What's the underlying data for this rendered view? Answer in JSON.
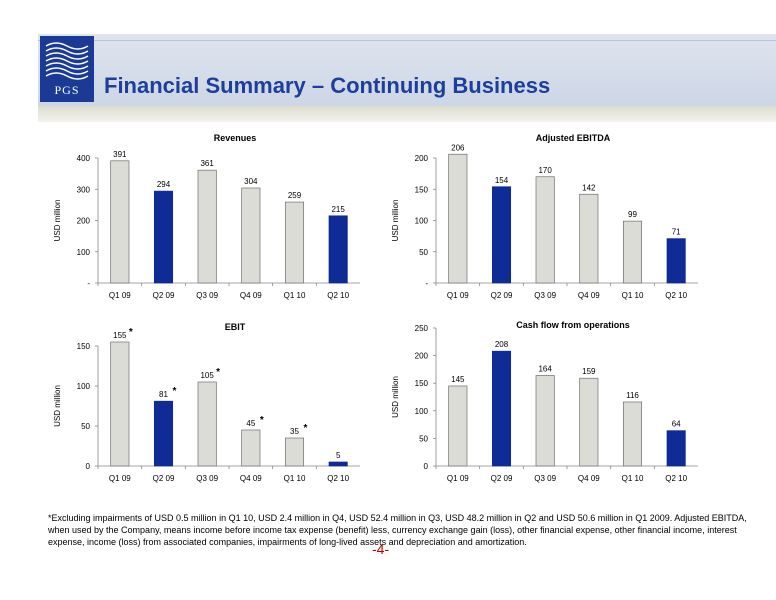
{
  "header": {
    "logo_text": "PGS",
    "title": "Financial Summary – Continuing Business"
  },
  "colors": {
    "grey_bar": "#dcdcd6",
    "blue_bar": "#0f2b96",
    "title_blue": "#1b3f9a"
  },
  "chart_data": [
    {
      "type": "bar",
      "title": "Revenues",
      "ylabel": "USD million",
      "categories": [
        "Q1 09",
        "Q2 09",
        "Q3 09",
        "Q4 09",
        "Q1 10",
        "Q2 10"
      ],
      "values": [
        391,
        294,
        361,
        304,
        259,
        215
      ],
      "highlight": [
        false,
        true,
        false,
        false,
        false,
        true
      ],
      "data_labels": [
        "391",
        "294",
        "361",
        "304",
        "259",
        "215"
      ],
      "ylim": [
        0,
        400
      ],
      "yticks": [
        0,
        100,
        200,
        300,
        400
      ],
      "ytick_labels": [
        "-",
        "100",
        "200",
        "300",
        "400"
      ]
    },
    {
      "type": "bar",
      "title": "Adjusted EBITDA",
      "ylabel": "USD million",
      "categories": [
        "Q1 09",
        "Q2 09",
        "Q3 09",
        "Q4 09",
        "Q1 10",
        "Q2 10"
      ],
      "values": [
        206,
        154,
        170,
        142,
        99,
        71
      ],
      "highlight": [
        false,
        true,
        false,
        false,
        false,
        true
      ],
      "data_labels": [
        "206",
        "154",
        "170",
        "142",
        "99",
        "71"
      ],
      "ylim": [
        0,
        200
      ],
      "yticks": [
        0,
        50,
        100,
        150,
        200
      ],
      "ytick_labels": [
        "-",
        "50",
        "100",
        "150",
        "200"
      ]
    },
    {
      "type": "bar",
      "title": "EBIT",
      "ylabel": "USD million",
      "categories": [
        "Q1 09",
        "Q2 09",
        "Q3 09",
        "Q4 09",
        "Q1 10",
        "Q2 10"
      ],
      "values": [
        155,
        81,
        105,
        45,
        35,
        5
      ],
      "highlight": [
        false,
        true,
        false,
        false,
        false,
        true
      ],
      "data_labels": [
        "155",
        "81",
        "105",
        "45",
        "35",
        "5"
      ],
      "asterisks": [
        "*",
        "*",
        "*",
        "*",
        "*",
        ""
      ],
      "ylim": [
        0,
        150
      ],
      "yticks": [
        0,
        50,
        100,
        150
      ],
      "ytick_labels": [
        "0",
        "50",
        "100",
        "150"
      ]
    },
    {
      "type": "bar",
      "title": "Cash flow from operations",
      "ylabel": "USD million",
      "categories": [
        "Q1 09",
        "Q2 09",
        "Q3 09",
        "Q4 09",
        "Q1 10",
        "Q2 10"
      ],
      "values": [
        145,
        208,
        164,
        159,
        116,
        64
      ],
      "highlight": [
        false,
        true,
        false,
        false,
        false,
        true
      ],
      "data_labels": [
        "145",
        "208",
        "164",
        "159",
        "116",
        "64"
      ],
      "ylim": [
        0,
        250
      ],
      "yticks": [
        0,
        50,
        100,
        150,
        200,
        250
      ],
      "ytick_labels": [
        "0",
        "50",
        "100",
        "150",
        "200",
        "250"
      ]
    }
  ],
  "footnote": "*Excluding impairments of USD 0.5 million in Q1 10, USD 2.4 million in Q4, USD 52.4 million in Q3, USD 48.2 million in Q2 and USD 50.6 million in Q1 2009. Adjusted EBITDA, when used by the Company, means income before income tax expense (benefit) less, currency exchange gain (loss), other financial expense, other financial income, interest expense,  income (loss) from associated companies, impairments of long-lived assets and depreciation and amortization.",
  "page_number": "-4-"
}
